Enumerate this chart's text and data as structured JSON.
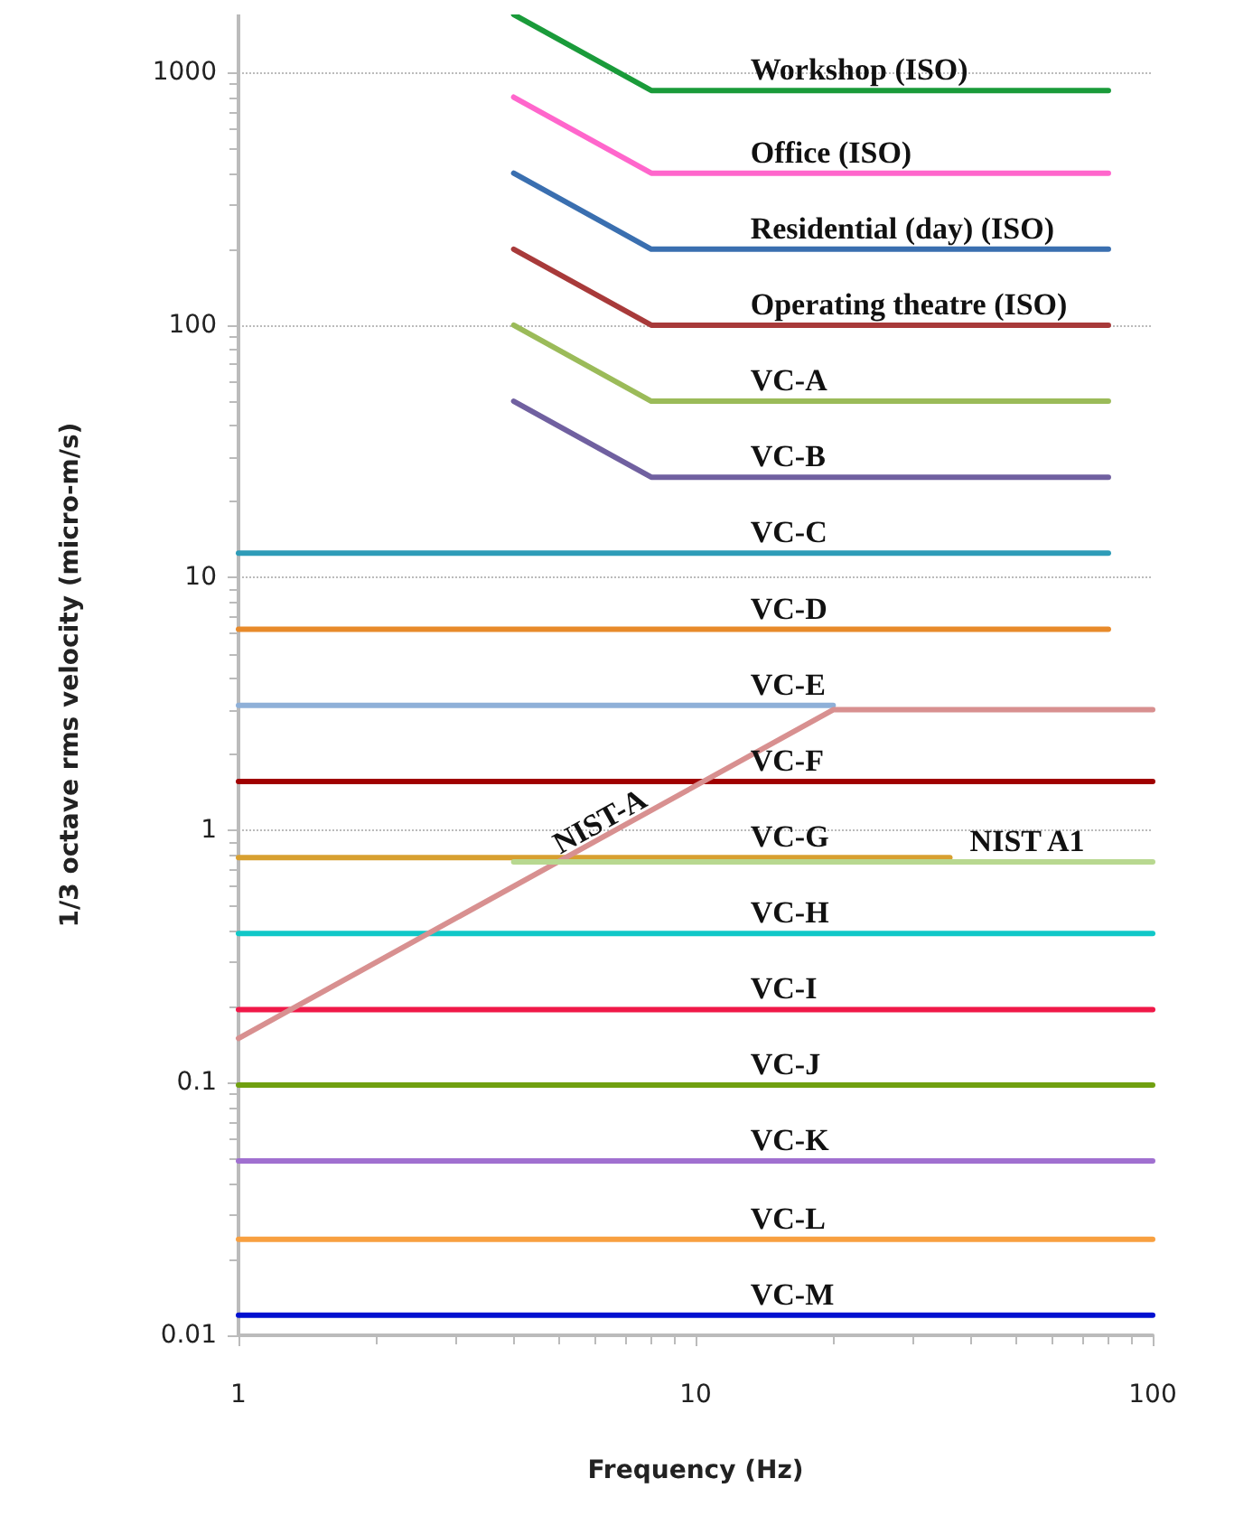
{
  "chart_data": {
    "type": "line",
    "xlabel": "Frequency (Hz)",
    "ylabel": "1/3 octave rms velocity (micro-m/s)",
    "log": "xy",
    "xlim": [
      1,
      100
    ],
    "xticks": [
      1,
      10,
      100
    ],
    "ylim": [
      0.01,
      1700
    ],
    "yticks": [
      0.01,
      0.1,
      1,
      10,
      100,
      1000
    ],
    "grid": "y",
    "legend": false,
    "marker": "none",
    "line_style": "solid",
    "series": [
      {
        "name": "Workshop (ISO)",
        "color": "#1a9b3a",
        "x": [
          4,
          8,
          80
        ],
        "values": [
          1700,
          850,
          850
        ]
      },
      {
        "name": "Office (ISO)",
        "color": "#ff66cc",
        "x": [
          4,
          8,
          80
        ],
        "values": [
          800,
          400,
          400
        ]
      },
      {
        "name": "Residential (day) (ISO)",
        "color": "#3a6fb0",
        "x": [
          4,
          8,
          80
        ],
        "values": [
          400,
          200,
          200
        ]
      },
      {
        "name": "Operating theatre (ISO)",
        "color": "#a83a3a",
        "x": [
          4,
          8,
          80
        ],
        "values": [
          200,
          100,
          100
        ]
      },
      {
        "name": "VC-A",
        "color": "#9bbb59",
        "x": [
          4,
          8,
          80
        ],
        "values": [
          100,
          50,
          50
        ]
      },
      {
        "name": "VC-B",
        "color": "#7060a0",
        "x": [
          4,
          8,
          80
        ],
        "values": [
          50,
          25,
          25
        ]
      },
      {
        "name": "VC-C",
        "color": "#2e9cb8",
        "x": [
          1,
          80
        ],
        "values": [
          12.5,
          12.5
        ]
      },
      {
        "name": "VC-D",
        "color": "#e88a2a",
        "x": [
          1,
          80
        ],
        "values": [
          6.25,
          6.25
        ]
      },
      {
        "name": "VC-E",
        "color": "#8fb0d8",
        "x": [
          1,
          20
        ],
        "values": [
          3.12,
          3.12
        ]
      },
      {
        "name": "VC-F",
        "color": "#a00000",
        "x": [
          1,
          100
        ],
        "values": [
          1.56,
          1.56
        ]
      },
      {
        "name": "VC-G",
        "color": "#d8a030",
        "x": [
          1,
          36
        ],
        "values": [
          0.78,
          0.78
        ]
      },
      {
        "name": "VC-H",
        "color": "#10c8c8",
        "x": [
          1,
          100
        ],
        "values": [
          0.39,
          0.39
        ]
      },
      {
        "name": "VC-I",
        "color": "#f01848",
        "x": [
          1,
          100
        ],
        "values": [
          0.195,
          0.195
        ]
      },
      {
        "name": "VC-J",
        "color": "#70a010",
        "x": [
          1,
          100
        ],
        "values": [
          0.098,
          0.098
        ]
      },
      {
        "name": "VC-K",
        "color": "#a070d0",
        "x": [
          1,
          100
        ],
        "values": [
          0.049,
          0.049
        ]
      },
      {
        "name": "VC-L",
        "color": "#f8a040",
        "x": [
          1,
          100
        ],
        "values": [
          0.024,
          0.024
        ]
      },
      {
        "name": "VC-M",
        "color": "#0010d0",
        "x": [
          1,
          100
        ],
        "values": [
          0.012,
          0.012
        ]
      },
      {
        "name": "NIST-A",
        "color": "#d89090",
        "x": [
          1,
          20,
          100
        ],
        "values": [
          0.15,
          3,
          3
        ]
      },
      {
        "name": "NIST A1",
        "color": "#b8d890",
        "x": [
          4,
          100
        ],
        "values": [
          0.75,
          0.75
        ]
      }
    ]
  }
}
